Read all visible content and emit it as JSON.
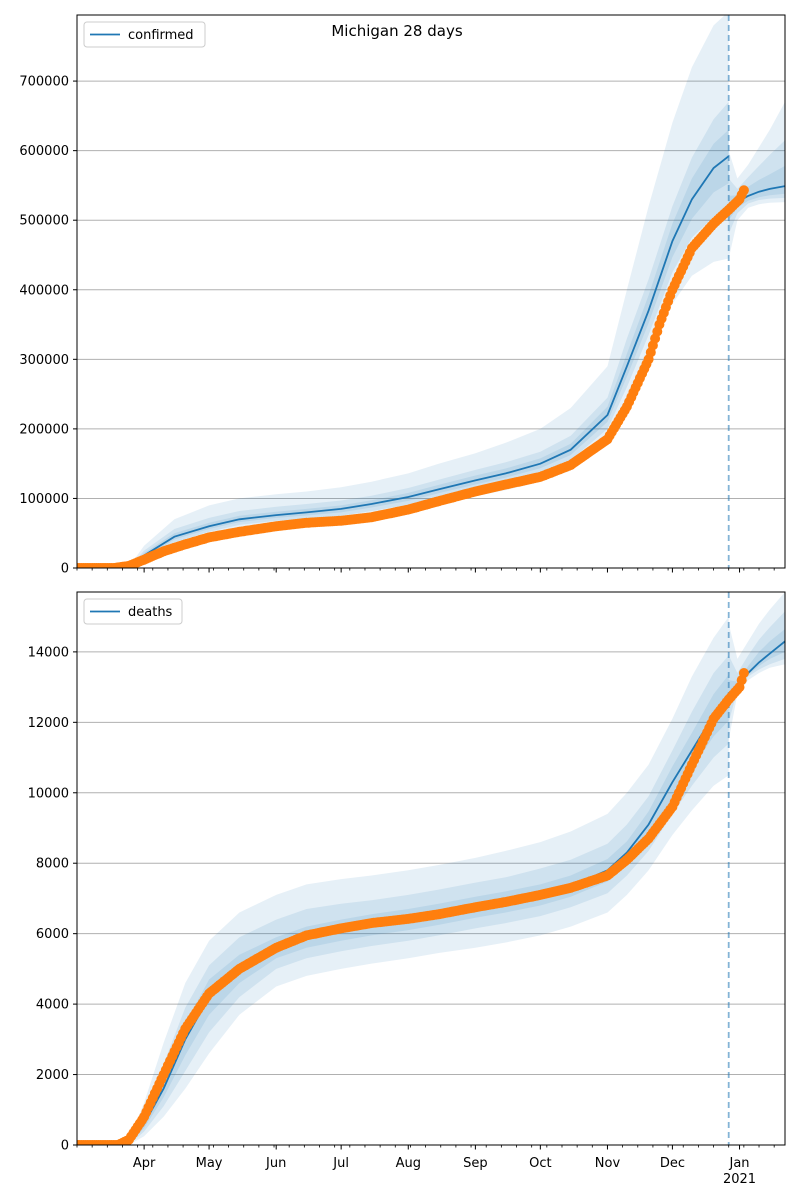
{
  "title": "Michigan 28 days",
  "colors": {
    "model": "#1f77b4",
    "observed": "#ff7f0e",
    "grid": "#b0b0b0",
    "band": "#1f77b4"
  },
  "x_axis": {
    "tick_labels": [
      "Apr",
      "May",
      "Jun",
      "Jul",
      "Aug",
      "Sep",
      "Oct",
      "Nov",
      "Dec",
      "Jan"
    ],
    "tick_dates": [
      "2020-04-01",
      "2020-05-01",
      "2020-06-01",
      "2020-07-01",
      "2020-08-01",
      "2020-09-01",
      "2020-10-01",
      "2020-11-01",
      "2020-12-01",
      "2021-01-01"
    ],
    "year_label": "2021",
    "range": [
      "2020-03-01",
      "2021-01-22"
    ]
  },
  "forecast_date": "2020-12-27",
  "chart_data": [
    {
      "type": "line",
      "legend": "confirmed",
      "legend_position": "top-left",
      "grid": "horizontal",
      "ylim": [
        0,
        795000
      ],
      "yticks": [
        0,
        100000,
        200000,
        300000,
        400000,
        500000,
        600000,
        700000
      ],
      "model_fit": {
        "x": [
          "2020-03-01",
          "2020-03-20",
          "2020-03-28",
          "2020-04-01",
          "2020-04-15",
          "2020-05-01",
          "2020-05-15",
          "2020-06-01",
          "2020-06-15",
          "2020-07-01",
          "2020-07-15",
          "2020-08-01",
          "2020-08-15",
          "2020-09-01",
          "2020-09-15",
          "2020-10-01",
          "2020-10-15",
          "2020-11-01",
          "2020-11-10",
          "2020-11-20",
          "2020-12-01",
          "2020-12-10",
          "2020-12-20",
          "2020-12-27"
        ],
        "y": [
          0,
          0,
          8000,
          18000,
          45000,
          60000,
          70000,
          76000,
          80000,
          85000,
          92000,
          102000,
          113000,
          126000,
          136000,
          150000,
          170000,
          220000,
          290000,
          370000,
          470000,
          530000,
          575000,
          592000
        ],
        "bands": [
          {
            "lower": [
              0,
              0,
              3000,
              8000,
              30000,
              45000,
              55000,
              60000,
              63000,
              67000,
              73000,
              82000,
              92000,
              103000,
              112000,
              124000,
              140000,
              180000,
              230000,
              300000,
              380000,
              420000,
              440000,
              445000
            ],
            "upper": [
              0,
              0,
              15000,
              32000,
              70000,
              90000,
              100000,
              106000,
              110000,
              116000,
              124000,
              136000,
              150000,
              165000,
              180000,
              200000,
              230000,
              290000,
              400000,
              520000,
              640000,
              720000,
              780000,
              800000
            ]
          },
          {
            "lower": [
              0,
              0,
              5000,
              12000,
              37000,
              52000,
              62000,
              68000,
              71000,
              75000,
              82000,
              91000,
              102000,
              114000,
              124000,
              137000,
              155000,
              200000,
              260000,
              335000,
              425000,
              475000,
              505000,
              515000
            ],
            "upper": [
              0,
              0,
              11000,
              25000,
              56000,
              72000,
              82000,
              88000,
              92000,
              97000,
              104000,
              115000,
              127000,
              141000,
              152000,
              167000,
              190000,
              245000,
              330000,
              415000,
              520000,
              590000,
              645000,
              670000
            ]
          },
          {
            "lower": [
              0,
              0,
              6500,
              15000,
              41000,
              56000,
              66000,
              72000,
              75500,
              80000,
              87000,
              96500,
              107500,
              120000,
              130000,
              143500,
              162500,
              210000,
              275000,
              352000,
              447000,
              502000,
              540000,
              553000
            ],
            "upper": [
              0,
              0,
              9500,
              21500,
              50000,
              65000,
              75000,
              81000,
              85000,
              90000,
              97500,
              108000,
              119500,
              133000,
              143000,
              157500,
              178500,
              232000,
              308000,
              392000,
              495000,
              560000,
              610000,
              630000
            ]
          }
        ]
      },
      "projection": {
        "x": [
          "2020-12-27",
          "2020-12-31",
          "2021-01-05",
          "2021-01-10",
          "2021-01-15",
          "2021-01-22"
        ],
        "y": [
          515000,
          526000,
          535000,
          541000,
          545000,
          549000
        ],
        "bands": [
          {
            "lower": [
              445000,
              500000,
              518000,
              523000,
              525000,
              526000
            ],
            "upper": [
              600000,
              560000,
              580000,
              605000,
              630000,
              670000
            ]
          },
          {
            "lower": [
              480000,
              510000,
              524000,
              529000,
              531000,
              532000
            ],
            "upper": [
              560000,
              545000,
              562000,
              578000,
              594000,
              615000
            ]
          },
          {
            "lower": [
              500000,
              518000,
              528000,
              533000,
              536000,
              538000
            ],
            "upper": [
              535000,
              536000,
              548000,
              558000,
              566000,
              578000
            ]
          }
        ]
      },
      "observed": {
        "x": [
          "2020-03-01",
          "2020-03-18",
          "2020-03-25",
          "2020-04-01",
          "2020-04-10",
          "2020-04-20",
          "2020-05-01",
          "2020-05-15",
          "2020-06-01",
          "2020-06-15",
          "2020-07-01",
          "2020-07-15",
          "2020-08-01",
          "2020-08-15",
          "2020-09-01",
          "2020-09-15",
          "2020-10-01",
          "2020-10-15",
          "2020-11-01",
          "2020-11-10",
          "2020-11-20",
          "2020-11-25",
          "2020-12-01",
          "2020-12-10",
          "2020-12-20",
          "2020-12-27",
          "2021-01-01",
          "2021-01-03"
        ],
        "y": [
          0,
          0,
          3000,
          12000,
          24000,
          34000,
          44000,
          52000,
          60000,
          65000,
          68000,
          73000,
          84000,
          96000,
          110000,
          120000,
          131000,
          148000,
          185000,
          232000,
          300000,
          350000,
          400000,
          460000,
          495000,
          515000,
          530000,
          543000
        ]
      }
    },
    {
      "type": "line",
      "legend": "deaths",
      "legend_position": "top-left",
      "grid": "horizontal",
      "ylim": [
        0,
        15700
      ],
      "yticks": [
        0,
        2000,
        4000,
        6000,
        8000,
        10000,
        12000,
        14000
      ],
      "model_fit": {
        "x": [
          "2020-03-01",
          "2020-03-20",
          "2020-03-26",
          "2020-04-01",
          "2020-04-10",
          "2020-04-20",
          "2020-05-01",
          "2020-05-15",
          "2020-06-01",
          "2020-06-15",
          "2020-07-01",
          "2020-07-15",
          "2020-08-01",
          "2020-08-15",
          "2020-09-01",
          "2020-09-15",
          "2020-10-01",
          "2020-10-15",
          "2020-11-01",
          "2020-11-10",
          "2020-11-20",
          "2020-12-01",
          "2020-12-10",
          "2020-12-20",
          "2020-12-27"
        ],
        "y": [
          0,
          0,
          100,
          600,
          1600,
          3000,
          4200,
          5000,
          5600,
          5900,
          6100,
          6250,
          6400,
          6550,
          6750,
          6900,
          7100,
          7350,
          7800,
          8300,
          9100,
          10300,
          11200,
          12200,
          12700
        ],
        "bands": [
          {
            "lower": [
              0,
              0,
              40,
              250,
              800,
              1600,
              2600,
              3700,
              4500,
              4800,
              5000,
              5150,
              5300,
              5450,
              5600,
              5750,
              5950,
              6200,
              6600,
              7100,
              7800,
              8800,
              9500,
              10200,
              10500
            ],
            "upper": [
              0,
              0,
              300,
              1200,
              2900,
              4600,
              5800,
              6600,
              7100,
              7400,
              7550,
              7650,
              7800,
              7950,
              8150,
              8350,
              8600,
              8900,
              9400,
              10000,
              10800,
              12100,
              13300,
              14400,
              15000
            ]
          },
          {
            "lower": [
              0,
              0,
              60,
              380,
              1100,
              2100,
              3200,
              4200,
              5000,
              5300,
              5500,
              5650,
              5800,
              5950,
              6150,
              6300,
              6500,
              6750,
              7150,
              7650,
              8350,
              9400,
              10200,
              11000,
              11400
            ],
            "upper": [
              0,
              0,
              200,
              900,
              2300,
              3900,
              5100,
              5900,
              6400,
              6700,
              6850,
              6950,
              7100,
              7250,
              7450,
              7600,
              7850,
              8100,
              8550,
              9100,
              9900,
              11200,
              12300,
              13400,
              13900
            ]
          },
          {
            "lower": [
              0,
              0,
              80,
              480,
              1350,
              2550,
              3700,
              4600,
              5300,
              5600,
              5800,
              5950,
              6100,
              6250,
              6450,
              6600,
              6800,
              7050,
              7480,
              7980,
              8730,
              9850,
              10700,
              11600,
              12050
            ],
            "upper": [
              0,
              0,
              140,
              720,
              1850,
              3450,
              4700,
              5400,
              5900,
              6200,
              6400,
              6550,
              6700,
              6850,
              7050,
              7200,
              7400,
              7650,
              8120,
              8620,
              9470,
              10750,
              11700,
              12800,
              13350
            ]
          }
        ]
      },
      "projection": {
        "x": [
          "2020-12-27",
          "2020-12-31",
          "2021-01-05",
          "2021-01-10",
          "2021-01-15",
          "2021-01-22"
        ],
        "y": [
          12700,
          13000,
          13400,
          13700,
          13950,
          14300
        ],
        "bands": [
          {
            "lower": [
              11500,
              12800,
              13200,
              13400,
              13550,
              13650
            ],
            "upper": [
              14800,
              13800,
              14300,
              14800,
              15200,
              15700
            ]
          },
          {
            "lower": [
              12000,
              12900,
              13300,
              13500,
              13650,
              13800
            ],
            "upper": [
              13900,
              13400,
              13900,
              14350,
              14700,
              15150
            ]
          },
          {
            "lower": [
              12400,
              12950,
              13350,
              13600,
              13800,
              14000
            ],
            "upper": [
              13200,
              13150,
              13600,
              14000,
              14300,
              14650
            ]
          }
        ]
      },
      "observed": {
        "x": [
          "2020-03-01",
          "2020-03-20",
          "2020-03-25",
          "2020-04-01",
          "2020-04-10",
          "2020-04-20",
          "2020-05-01",
          "2020-05-15",
          "2020-06-01",
          "2020-06-15",
          "2020-07-01",
          "2020-07-15",
          "2020-08-01",
          "2020-08-15",
          "2020-09-01",
          "2020-09-15",
          "2020-10-01",
          "2020-10-15",
          "2020-11-01",
          "2020-11-10",
          "2020-11-20",
          "2020-12-01",
          "2020-12-10",
          "2020-12-20",
          "2020-12-27",
          "2021-01-01",
          "2021-01-03"
        ],
        "y": [
          0,
          0,
          150,
          800,
          2000,
          3300,
          4300,
          5000,
          5600,
          5950,
          6150,
          6300,
          6420,
          6550,
          6750,
          6900,
          7100,
          7300,
          7650,
          8100,
          8700,
          9600,
          10800,
          12100,
          12650,
          13000,
          13400
        ]
      }
    }
  ]
}
